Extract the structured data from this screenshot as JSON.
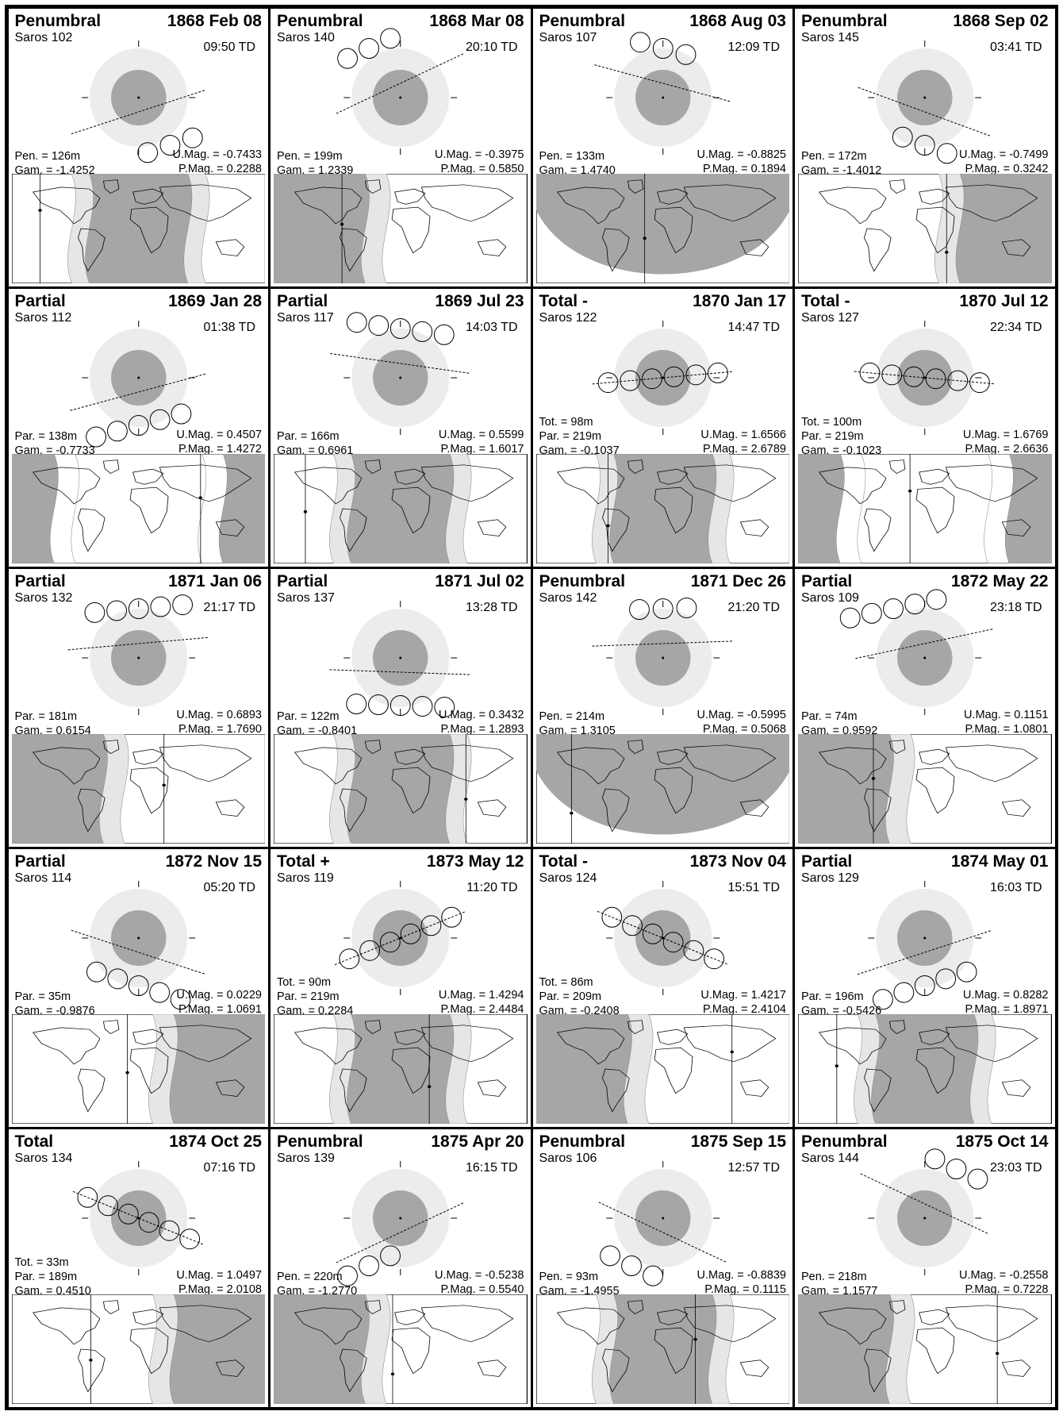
{
  "eclipses": [
    {
      "type": "Penumbral",
      "date": "1868 Feb 08",
      "saros": "Saros 102",
      "time": "09:50 TD",
      "stats": [
        [
          "Pen. = 126m",
          ""
        ]
      ],
      "pen": "Pen. = 126m",
      "gam": "Gam. = -1.4252",
      "umag": "U.Mag. = -0.7433",
      "pmag": "P.Mag. = 0.2288",
      "tilt": -18,
      "path": "below-right",
      "circles": 3,
      "shade": "center"
    },
    {
      "type": "Penumbral",
      "date": "1868 Mar 08",
      "saros": "Saros 140",
      "time": "20:10 TD",
      "pen": "Pen. = 199m",
      "gam": "Gam. = 1.2339",
      "umag": "U.Mag. = -0.3975",
      "pmag": "P.Mag. = 0.5850",
      "tilt": -25,
      "path": "above-left",
      "circles": 3,
      "shade": "left"
    },
    {
      "type": "Penumbral",
      "date": "1868 Aug 03",
      "saros": "Saros 107",
      "time": "12:09 TD",
      "pen": "Pen. = 133m",
      "gam": "Gam. = 1.4740",
      "umag": "U.Mag. = -0.8825",
      "pmag": "P.Mag. = 0.1894",
      "tilt": 15,
      "path": "above",
      "circles": 3,
      "shade": "bottom"
    },
    {
      "type": "Penumbral",
      "date": "1868 Sep 02",
      "saros": "Saros 145",
      "time": "03:41 TD",
      "pen": "Pen. = 172m",
      "gam": "Gam. = -1.4012",
      "umag": "U.Mag. = -0.7499",
      "pmag": "P.Mag. = 0.3242",
      "tilt": 20,
      "path": "below",
      "circles": 3,
      "shade": "right"
    },
    {
      "type": "Partial",
      "date": "1869 Jan 28",
      "saros": "Saros 112",
      "time": "01:38 TD",
      "par": "Par. = 138m",
      "gam": "Gam. = -0.7733",
      "umag": "U.Mag. = 0.4507",
      "pmag": "P.Mag. = 1.4272",
      "tilt": -15,
      "path": "below",
      "circles": 5,
      "shade": "sides"
    },
    {
      "type": "Partial",
      "date": "1869 Jul 23",
      "saros": "Saros 117",
      "time": "14:03 TD",
      "par": "Par. = 166m",
      "gam": "Gam. = 0.6961",
      "umag": "U.Mag. = 0.5599",
      "pmag": "P.Mag. = 1.6017",
      "tilt": 8,
      "path": "above",
      "circles": 5,
      "shade": "center"
    },
    {
      "type": "Total  -",
      "date": "1870 Jan 17",
      "saros": "Saros 122",
      "time": "14:47 TD",
      "tot": "Tot. =  98m",
      "par": "Par. = 219m",
      "gam": "Gam. = -0.1037",
      "umag": "U.Mag. = 1.6566",
      "pmag": "P.Mag. = 2.6789",
      "tilt": -5,
      "path": "center",
      "circles": 6,
      "shade": "center"
    },
    {
      "type": "Total  -",
      "date": "1870 Jul 12",
      "saros": "Saros 127",
      "time": "22:34 TD",
      "tot": "Tot. = 100m",
      "par": "Par. = 219m",
      "gam": "Gam. = -0.1023",
      "umag": "U.Mag. = 1.6769",
      "pmag": "P.Mag. = 2.6636",
      "tilt": 5,
      "path": "center",
      "circles": 6,
      "shade": "sides"
    },
    {
      "type": "Partial",
      "date": "1871 Jan 06",
      "saros": "Saros 132",
      "time": "21:17 TD",
      "par": "Par. = 181m",
      "gam": "Gam. = 0.6154",
      "umag": "U.Mag. = 0.6893",
      "pmag": "P.Mag. = 1.7690",
      "tilt": -5,
      "path": "above",
      "circles": 5,
      "shade": "left"
    },
    {
      "type": "Partial",
      "date": "1871 Jul 02",
      "saros": "Saros 137",
      "time": "13:28 TD",
      "par": "Par. = 122m",
      "gam": "Gam. = -0.8401",
      "umag": "U.Mag. = 0.3432",
      "pmag": "P.Mag. = 1.2893",
      "tilt": 2,
      "path": "below",
      "circles": 5,
      "shade": "center"
    },
    {
      "type": "Penumbral",
      "date": "1871 Dec 26",
      "saros": "Saros 142",
      "time": "21:20 TD",
      "pen": "Pen. = 214m",
      "gam": "Gam. = 1.3105",
      "umag": "U.Mag. = -0.5995",
      "pmag": "P.Mag. = 0.5068",
      "tilt": -2,
      "path": "above",
      "circles": 3,
      "shade": "bottom"
    },
    {
      "type": "Partial",
      "date": "1872 May 22",
      "saros": "Saros 109",
      "time": "23:18 TD",
      "par": "Par. =  74m",
      "gam": "Gam. = 0.9592",
      "umag": "U.Mag. = 0.1151",
      "pmag": "P.Mag. = 1.0801",
      "tilt": -12,
      "path": "above-left",
      "circles": 5,
      "shade": "left"
    },
    {
      "type": "Partial",
      "date": "1872 Nov 15",
      "saros": "Saros 114",
      "time": "05:20 TD",
      "par": "Par. =  35m",
      "gam": "Gam. = -0.9876",
      "umag": "U.Mag. = 0.0229",
      "pmag": "P.Mag. = 1.0691",
      "tilt": 18,
      "path": "below",
      "circles": 5,
      "shade": "right"
    },
    {
      "type": "Total  +",
      "date": "1873 May 12",
      "saros": "Saros 119",
      "time": "11:20 TD",
      "tot": "Tot. =  90m",
      "par": "Par. = 219m",
      "gam": "Gam. = 0.2284",
      "umag": "U.Mag. = 1.4294",
      "pmag": "P.Mag. = 2.4484",
      "tilt": -22,
      "path": "center",
      "circles": 6,
      "shade": "center"
    },
    {
      "type": "Total  -",
      "date": "1873 Nov 04",
      "saros": "Saros 124",
      "time": "15:51 TD",
      "tot": "Tot. =  86m",
      "par": "Par. = 209m",
      "gam": "Gam. = -0.2408",
      "umag": "U.Mag. = 1.4217",
      "pmag": "P.Mag. = 2.4104",
      "tilt": 22,
      "path": "center",
      "circles": 6,
      "shade": "left"
    },
    {
      "type": "Partial",
      "date": "1874 May 01",
      "saros": "Saros 129",
      "time": "16:03 TD",
      "par": "Par. = 196m",
      "gam": "Gam. = -0.5426",
      "umag": "U.Mag. = 0.8282",
      "pmag": "P.Mag. = 1.8971",
      "tilt": -18,
      "path": "below",
      "circles": 5,
      "shade": "center"
    },
    {
      "type": "Total",
      "date": "1874 Oct 25",
      "saros": "Saros 134",
      "time": "07:16 TD",
      "tot": "Tot. =  33m",
      "par": "Par. = 189m",
      "gam": "Gam. = 0.4510",
      "umag": "U.Mag. = 1.0497",
      "pmag": "P.Mag. = 2.0108",
      "tilt": 22,
      "path": "center",
      "circles": 6,
      "shade": "right"
    },
    {
      "type": "Penumbral",
      "date": "1875 Apr 20",
      "saros": "Saros 139",
      "time": "16:15 TD",
      "pen": "Pen. = 220m",
      "gam": "Gam. = -1.2770",
      "umag": "U.Mag. = -0.5238",
      "pmag": "P.Mag. = 0.5540",
      "tilt": -25,
      "path": "below-left",
      "circles": 3,
      "shade": "left"
    },
    {
      "type": "Penumbral",
      "date": "1875 Sep 15",
      "saros": "Saros 106",
      "time": "12:57 TD",
      "pen": "Pen. =  93m",
      "gam": "Gam. = -1.4955",
      "umag": "U.Mag. = -0.8839",
      "pmag": "P.Mag. = 0.1115",
      "tilt": 25,
      "path": "below-left",
      "circles": 3,
      "shade": "center"
    },
    {
      "type": "Penumbral",
      "date": "1875 Oct 14",
      "saros": "Saros 144",
      "time": "23:03 TD",
      "pen": "Pen. = 218m",
      "gam": "Gam. = 1.1577",
      "umag": "U.Mag. = -0.2558",
      "pmag": "P.Mag. = 0.7228",
      "tilt": 25,
      "path": "above-right",
      "circles": 3,
      "shade": "left"
    }
  ]
}
